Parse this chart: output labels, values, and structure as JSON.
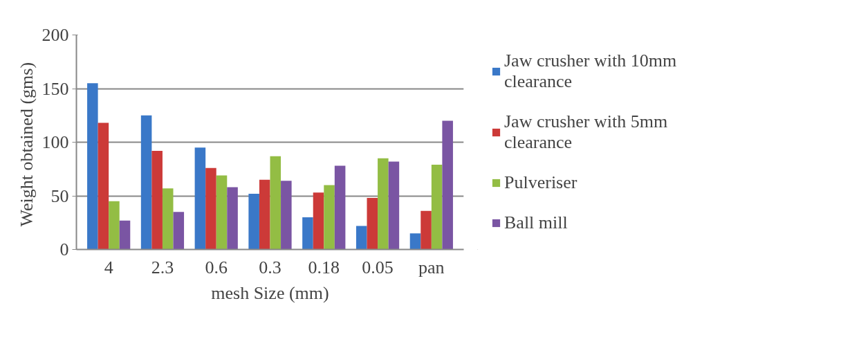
{
  "chart_data": {
    "type": "bar",
    "xlabel": "mesh Size (mm)",
    "ylabel": "Weight  obtained (gms)",
    "categories": [
      "4",
      "2.3",
      "0.6",
      "0.3",
      "0.18",
      "0.05",
      "pan"
    ],
    "series": [
      {
        "name": "Jaw crusher with 10mm clearance",
        "color": "#3a78c8",
        "values": [
          155,
          125,
          95,
          52,
          30,
          22,
          15
        ]
      },
      {
        "name": "Jaw crusher with 5mm clearance",
        "color": "#cc3a38",
        "values": [
          118,
          92,
          76,
          65,
          53,
          48,
          36
        ]
      },
      {
        "name": "Pulveriser",
        "color": "#93bd44",
        "values": [
          45,
          57,
          69,
          87,
          60,
          85,
          79
        ]
      },
      {
        "name": "Ball mill",
        "color": "#7a55a3",
        "values": [
          27,
          35,
          58,
          64,
          78,
          82,
          120
        ]
      }
    ],
    "ylim": [
      0,
      200
    ],
    "yticks": [
      0,
      50,
      100,
      150,
      200
    ],
    "grid": "y",
    "legend": "right"
  }
}
